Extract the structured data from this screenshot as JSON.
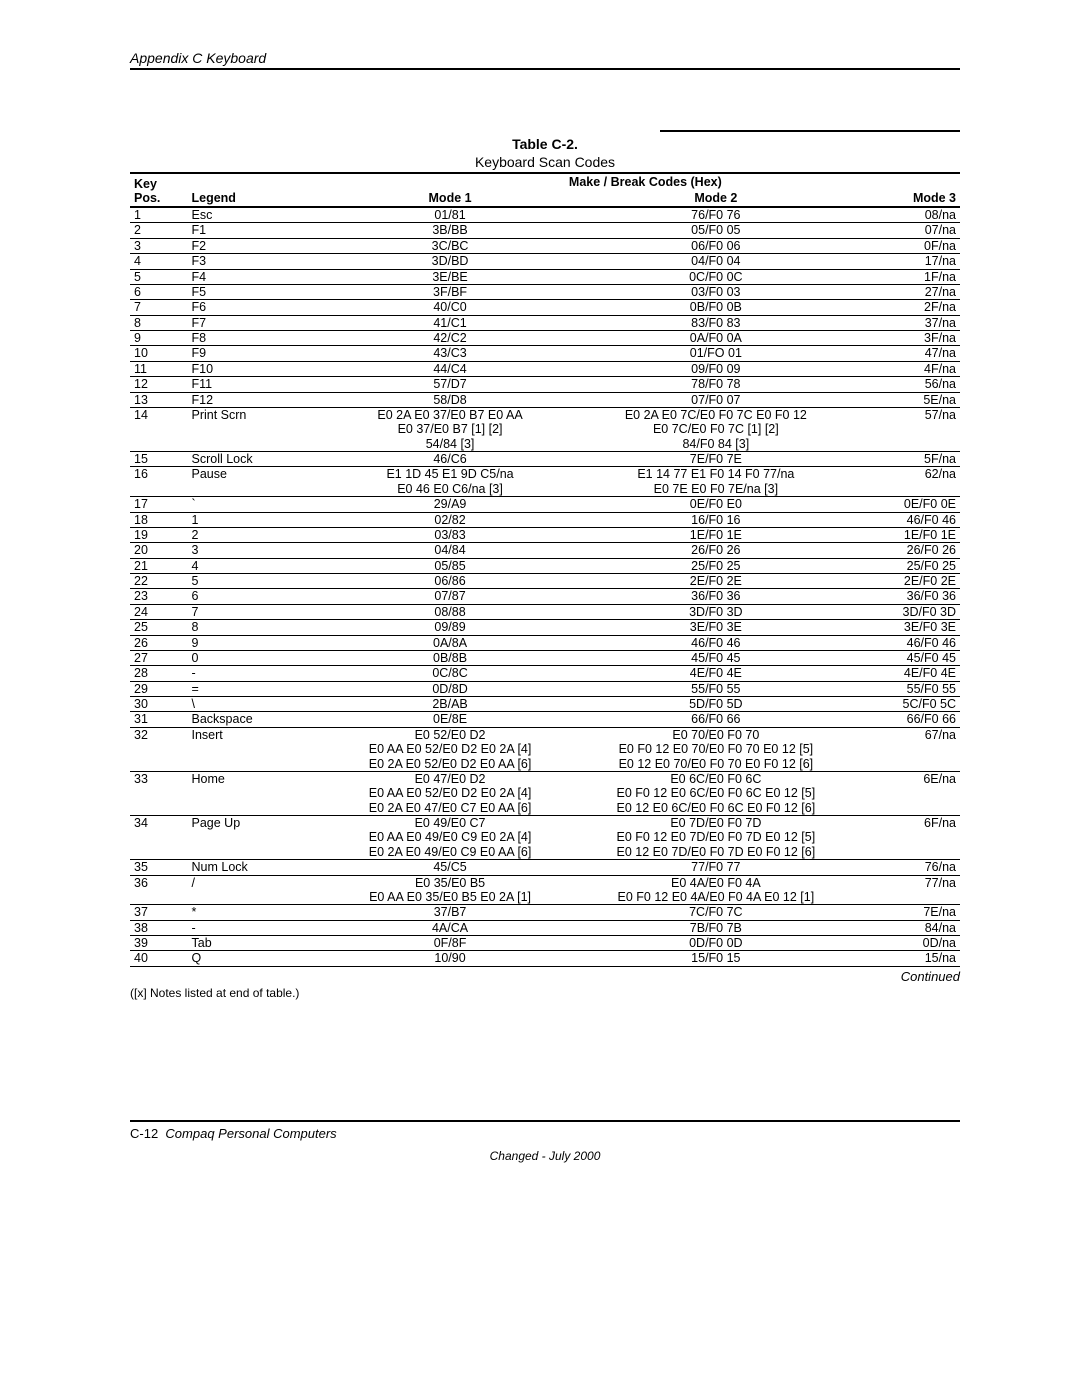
{
  "header": {
    "section": "Appendix C  Keyboard"
  },
  "table": {
    "caption": "Table C-2.",
    "subtitle": "Keyboard Scan Codes",
    "group_header": "Make / Break Codes (Hex)",
    "columns": {
      "pos": "Key\nPos.",
      "legend": "Legend",
      "mode1": "Mode 1",
      "mode2": "Mode 2",
      "mode3": "Mode 3"
    },
    "rows": [
      {
        "pos": "1",
        "legend": "Esc",
        "m1": "01/81",
        "m2": "76/F0 76",
        "m3": "08/na"
      },
      {
        "pos": "2",
        "legend": "F1",
        "m1": "3B/BB",
        "m2": "05/F0 05",
        "m3": "07/na"
      },
      {
        "pos": "3",
        "legend": "F2",
        "m1": "3C/BC",
        "m2": "06/F0 06",
        "m3": "0F/na"
      },
      {
        "pos": "4",
        "legend": "F3",
        "m1": "3D/BD",
        "m2": "04/F0 04",
        "m3": "17/na"
      },
      {
        "pos": "5",
        "legend": "F4",
        "m1": "3E/BE",
        "m2": "0C/F0 0C",
        "m3": "1F/na"
      },
      {
        "pos": "6",
        "legend": "F5",
        "m1": "3F/BF",
        "m2": "03/F0 03",
        "m3": "27/na"
      },
      {
        "pos": "7",
        "legend": "F6",
        "m1": "40/C0",
        "m2": "0B/F0 0B",
        "m3": "2F/na"
      },
      {
        "pos": "8",
        "legend": "F7",
        "m1": "41/C1",
        "m2": "83/F0 83",
        "m3": "37/na"
      },
      {
        "pos": "9",
        "legend": "F8",
        "m1": "42/C2",
        "m2": "0A/F0 0A",
        "m3": "3F/na"
      },
      {
        "pos": "10",
        "legend": "F9",
        "m1": "43/C3",
        "m2": "01/FO 01",
        "m3": "47/na"
      },
      {
        "pos": "11",
        "legend": "F10",
        "m1": "44/C4",
        "m2": "09/F0 09",
        "m3": "4F/na"
      },
      {
        "pos": "12",
        "legend": "F11",
        "m1": "57/D7",
        "m2": "78/F0 78",
        "m3": "56/na"
      },
      {
        "pos": "13",
        "legend": "F12",
        "m1": "58/D8",
        "m2": "07/F0 07",
        "m3": "5E/na"
      },
      {
        "pos": "14",
        "legend": "Print Scrn",
        "m1": "E0 2A E0 37/E0 B7 E0 AA\nE0 37/E0 B7 [1] [2]\n54/84 [3]",
        "m2": "E0 2A E0 7C/E0 F0 7C E0 F0 12\nE0 7C/E0 F0 7C [1] [2]\n84/F0 84 [3]",
        "m3": "57/na"
      },
      {
        "pos": "15",
        "legend": "Scroll Lock",
        "m1": "46/C6",
        "m2": "7E/F0 7E",
        "m3": "5F/na"
      },
      {
        "pos": "16",
        "legend": "Pause",
        "m1": "E1 1D 45 E1 9D C5/na\nE0 46 E0 C6/na [3]",
        "m2": "E1 14 77 E1 F0 14 F0 77/na\nE0 7E E0 F0 7E/na [3]",
        "m3": "62/na"
      },
      {
        "pos": "17",
        "legend": "`",
        "m1": "29/A9",
        "m2": "0E/F0 E0",
        "m3": "0E/F0 0E"
      },
      {
        "pos": "18",
        "legend": "1",
        "m1": "02/82",
        "m2": "16/F0 16",
        "m3": "46/F0 46"
      },
      {
        "pos": "19",
        "legend": "2",
        "m1": "03/83",
        "m2": "1E/F0 1E",
        "m3": "1E/F0 1E"
      },
      {
        "pos": "20",
        "legend": "3",
        "m1": "04/84",
        "m2": "26/F0 26",
        "m3": "26/F0 26"
      },
      {
        "pos": "21",
        "legend": "4",
        "m1": "05/85",
        "m2": "25/F0 25",
        "m3": "25/F0 25"
      },
      {
        "pos": "22",
        "legend": "5",
        "m1": "06/86",
        "m2": "2E/F0 2E",
        "m3": "2E/F0 2E"
      },
      {
        "pos": "23",
        "legend": "6",
        "m1": "07/87",
        "m2": "36/F0 36",
        "m3": "36/F0 36"
      },
      {
        "pos": "24",
        "legend": "7",
        "m1": "08/88",
        "m2": "3D/F0 3D",
        "m3": "3D/F0 3D"
      },
      {
        "pos": "25",
        "legend": "8",
        "m1": "09/89",
        "m2": "3E/F0 3E",
        "m3": "3E/F0 3E"
      },
      {
        "pos": "26",
        "legend": "9",
        "m1": "0A/8A",
        "m2": "46/F0 46",
        "m3": "46/F0 46"
      },
      {
        "pos": "27",
        "legend": "0",
        "m1": "0B/8B",
        "m2": "45/F0 45",
        "m3": "45/F0 45"
      },
      {
        "pos": "28",
        "legend": "-",
        "m1": "0C/8C",
        "m2": "4E/F0 4E",
        "m3": "4E/F0 4E"
      },
      {
        "pos": "29",
        "legend": "=",
        "m1": "0D/8D",
        "m2": "55/F0 55",
        "m3": "55/F0 55"
      },
      {
        "pos": "30",
        "legend": "\\",
        "m1": "2B/AB",
        "m2": "5D/F0 5D",
        "m3": "5C/F0 5C"
      },
      {
        "pos": "31",
        "legend": "Backspace",
        "m1": "0E/8E",
        "m2": "66/F0 66",
        "m3": "66/F0 66"
      },
      {
        "pos": "32",
        "legend": "Insert",
        "m1": "E0 52/E0 D2\nE0 AA E0 52/E0 D2 E0 2A [4]\nE0 2A E0 52/E0 D2 E0 AA [6]",
        "m2": "E0 70/E0 F0 70\nE0 F0 12 E0 70/E0 F0 70 E0 12 [5]\nE0 12 E0 70/E0 F0 70 E0 F0 12 [6]",
        "m3": "67/na"
      },
      {
        "pos": "33",
        "legend": "Home",
        "m1": "E0 47/E0 D2\nE0 AA E0 52/E0 D2 E0 2A [4]\nE0 2A E0 47/E0 C7 E0 AA [6]",
        "m2": "E0 6C/E0 F0 6C\nE0 F0 12 E0 6C/E0 F0 6C E0 12 [5]\nE0 12 E0 6C/E0 F0 6C E0 F0 12 [6]",
        "m3": "6E/na"
      },
      {
        "pos": "34",
        "legend": "Page Up",
        "m1": "E0 49/E0 C7\nE0 AA E0 49/E0 C9 E0 2A [4]\nE0 2A E0 49/E0 C9 E0 AA [6]",
        "m2": "E0 7D/E0 F0 7D\nE0 F0 12 E0 7D/E0 F0 7D E0 12 [5]\nE0 12 E0 7D/E0 F0 7D E0 F0 12 [6]",
        "m3": "6F/na"
      },
      {
        "pos": "35",
        "legend": "Num Lock",
        "m1": "45/C5",
        "m2": "77/F0 77",
        "m3": "76/na"
      },
      {
        "pos": "36",
        "legend": "/",
        "m1": "E0 35/E0 B5\nE0 AA E0 35/E0 B5 E0 2A [1]",
        "m2": "E0 4A/E0 F0 4A\nE0 F0 12 E0 4A/E0 F0 4A E0 12 [1]",
        "m3": "77/na"
      },
      {
        "pos": "37",
        "legend": "*",
        "m1": "37/B7",
        "m2": "7C/F0 7C",
        "m3": "7E/na"
      },
      {
        "pos": "38",
        "legend": "-",
        "m1": "4A/CA",
        "m2": "7B/F0 7B",
        "m3": "84/na"
      },
      {
        "pos": "39",
        "legend": "Tab",
        "m1": "0F/8F",
        "m2": "0D/F0 0D",
        "m3": "0D/na"
      },
      {
        "pos": "40",
        "legend": "Q",
        "m1": "10/90",
        "m2": "15/F0 15",
        "m3": "15/na"
      }
    ]
  },
  "continued": "Continued",
  "notes": "([x] Notes listed at end of table.)",
  "footer": {
    "page": "C-12",
    "book": "Compaq Personal Computers",
    "changed": "Changed - July 2000"
  }
}
